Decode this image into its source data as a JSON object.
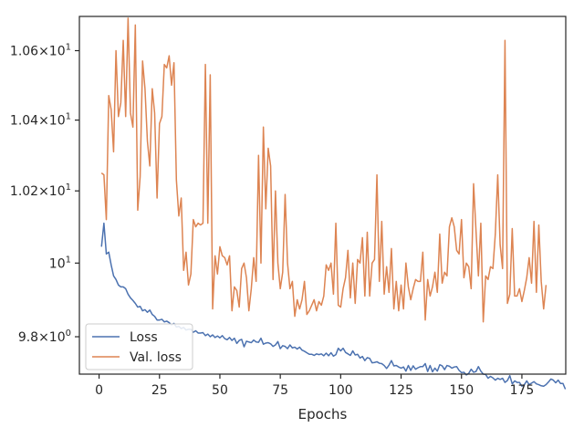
{
  "chart_data": {
    "type": "line",
    "xlabel": "Epochs",
    "ylabel": "",
    "xlim": [
      -8.15,
      193.15
    ],
    "ylim": [
      9.7,
      10.7
    ],
    "yscale": "log",
    "grid": false,
    "legend_position": "lower-left",
    "x_ticks": [
      0,
      25,
      50,
      75,
      100,
      125,
      150,
      175
    ],
    "y_ticks": [
      {
        "value": 9.8,
        "base": "9.8×10",
        "exp": "0"
      },
      {
        "value": 10.0,
        "base": "10",
        "exp": "1"
      },
      {
        "value": 10.2,
        "base": "1.02×10",
        "exp": "1"
      },
      {
        "value": 10.4,
        "base": "1.04×10",
        "exp": "1"
      },
      {
        "value": 10.6,
        "base": "1.06×10",
        "exp": "1"
      }
    ],
    "series": [
      {
        "name": "Loss",
        "color": "#4c72b0",
        "x_start": 1,
        "values": [
          10.045,
          10.11,
          10.025,
          10.03,
          9.995,
          9.965,
          9.955,
          9.94,
          9.935,
          9.935,
          9.93,
          9.915,
          9.905,
          9.898,
          9.89,
          9.88,
          9.882,
          9.87,
          9.873,
          9.866,
          9.872,
          9.86,
          9.855,
          9.845,
          9.845,
          9.847,
          9.84,
          9.842,
          9.838,
          9.832,
          9.836,
          9.826,
          9.828,
          9.822,
          9.825,
          9.818,
          9.82,
          9.82,
          9.812,
          9.816,
          9.81,
          9.81,
          9.811,
          9.803,
          9.807,
          9.8,
          9.805,
          9.798,
          9.802,
          9.797,
          9.803,
          9.795,
          9.792,
          9.798,
          9.79,
          9.796,
          9.782,
          9.79,
          9.793,
          9.773,
          9.788,
          9.786,
          9.784,
          9.791,
          9.786,
          9.785,
          9.796,
          9.78,
          9.783,
          9.784,
          9.781,
          9.774,
          9.778,
          9.787,
          9.768,
          9.776,
          9.774,
          9.768,
          9.778,
          9.77,
          9.772,
          9.767,
          9.772,
          9.764,
          9.761,
          9.757,
          9.753,
          9.753,
          9.75,
          9.754,
          9.752,
          9.754,
          9.749,
          9.756,
          9.749,
          9.757,
          9.748,
          9.752,
          9.769,
          9.762,
          9.769,
          9.758,
          9.754,
          9.75,
          9.762,
          9.751,
          9.753,
          9.743,
          9.747,
          9.736,
          9.744,
          9.742,
          9.73,
          9.731,
          9.733,
          9.729,
          9.728,
          9.723,
          9.715,
          9.724,
          9.736,
          9.722,
          9.723,
          9.719,
          9.716,
          9.719,
          9.708,
          9.723,
          9.71,
          9.722,
          9.713,
          9.717,
          9.72,
          9.72,
          9.728,
          9.707,
          9.723,
          9.706,
          9.716,
          9.708,
          9.725,
          9.722,
          9.712,
          9.723,
          9.721,
          9.716,
          9.719,
          9.72,
          9.71,
          9.704,
          9.705,
          9.698,
          9.702,
          9.713,
          9.705,
          9.707,
          9.72,
          9.708,
          9.7,
          9.699,
          9.689,
          9.694,
          9.69,
          9.684,
          9.689,
          9.686,
          9.689,
          9.678,
          9.683,
          9.696,
          9.674,
          9.682,
          9.678,
          9.678,
          9.668,
          9.672,
          9.682,
          9.672,
          9.676,
          9.68,
          9.674,
          9.672,
          9.669,
          9.668,
          9.672,
          9.679,
          9.687,
          9.684,
          9.677,
          9.684,
          9.675,
          9.675,
          9.66
        ]
      },
      {
        "name": "Val. loss",
        "color": "#dd8452",
        "x_start": 1,
        "values": [
          10.25,
          10.245,
          10.12,
          10.47,
          10.43,
          10.31,
          10.6,
          10.41,
          10.45,
          10.63,
          10.41,
          10.695,
          10.42,
          10.38,
          10.675,
          10.146,
          10.24,
          10.57,
          10.49,
          10.34,
          10.27,
          10.49,
          10.42,
          10.18,
          10.39,
          10.41,
          10.56,
          10.55,
          10.585,
          10.5,
          10.565,
          10.23,
          10.13,
          10.18,
          9.98,
          10.03,
          9.94,
          9.97,
          10.12,
          10.1,
          10.11,
          10.105,
          10.11,
          10.56,
          10.11,
          10.53,
          9.875,
          10.02,
          9.97,
          10.045,
          10.02,
          10.015,
          9.995,
          10.02,
          9.87,
          9.935,
          9.925,
          9.88,
          9.985,
          10.0,
          9.96,
          9.87,
          9.93,
          10.015,
          9.95,
          10.3,
          10.0,
          10.38,
          10.15,
          10.32,
          10.27,
          9.955,
          10.2,
          10.0,
          9.93,
          9.975,
          10.19,
          10.0,
          9.93,
          9.95,
          9.855,
          9.9,
          9.875,
          9.9,
          9.95,
          9.86,
          9.87,
          9.885,
          9.9,
          9.87,
          9.895,
          9.885,
          9.91,
          9.995,
          9.98,
          10.0,
          9.915,
          10.11,
          9.885,
          9.88,
          9.93,
          9.96,
          10.035,
          9.905,
          10.0,
          9.89,
          10.01,
          10.0,
          10.07,
          9.91,
          10.085,
          9.91,
          10.0,
          10.01,
          10.245,
          9.95,
          10.115,
          9.915,
          9.99,
          9.92,
          10.04,
          9.875,
          9.95,
          9.87,
          9.94,
          9.875,
          10.0,
          9.935,
          9.9,
          9.93,
          9.955,
          9.95,
          9.95,
          10.03,
          9.845,
          9.955,
          9.91,
          9.935,
          9.975,
          9.92,
          10.08,
          9.945,
          9.975,
          9.965,
          10.1,
          10.125,
          10.1,
          10.035,
          10.025,
          10.12,
          9.96,
          10.0,
          9.99,
          9.93,
          10.22,
          10.09,
          9.965,
          10.11,
          9.84,
          9.965,
          9.955,
          9.99,
          9.985,
          10.08,
          10.245,
          10.05,
          9.985,
          10.63,
          9.89,
          9.915,
          10.095,
          9.91,
          9.91,
          9.93,
          9.895,
          9.925,
          9.96,
          10.015,
          9.945,
          10.115,
          9.92,
          10.105,
          9.95,
          9.875,
          9.94
        ]
      }
    ]
  }
}
